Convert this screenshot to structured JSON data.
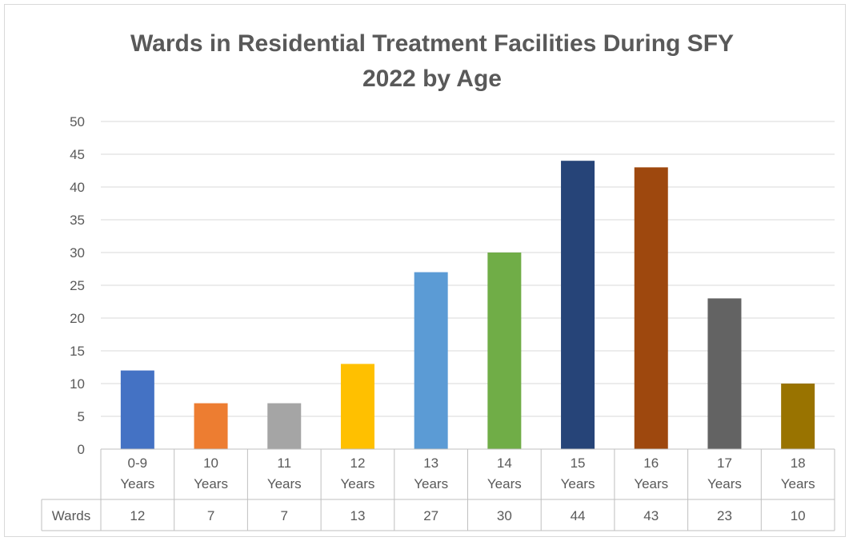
{
  "chart_data": {
    "type": "bar",
    "title_lines": [
      "Wards in Residential Treatment Facilities During SFY",
      "2022 by Age"
    ],
    "categories": [
      [
        "0-9",
        "Years"
      ],
      [
        "10",
        "Years"
      ],
      [
        "11",
        "Years"
      ],
      [
        "12",
        "Years"
      ],
      [
        "13",
        "Years"
      ],
      [
        "14",
        "Years"
      ],
      [
        "15",
        "Years"
      ],
      [
        "16",
        "Years"
      ],
      [
        "17",
        "Years"
      ],
      [
        "18",
        "Years"
      ]
    ],
    "series": [
      {
        "name": "Wards",
        "values": [
          12,
          7,
          7,
          13,
          27,
          30,
          44,
          43,
          23,
          10
        ]
      }
    ],
    "colors": [
      "#4472C4",
      "#ED7D31",
      "#A5A5A5",
      "#FFC000",
      "#5B9BD5",
      "#70AD47",
      "#264478",
      "#9E480E",
      "#636363",
      "#997300"
    ],
    "ylim": [
      0,
      50
    ],
    "yticks": [
      0,
      5,
      10,
      15,
      20,
      25,
      30,
      35,
      40,
      45,
      50
    ],
    "grid": true,
    "legend": "none",
    "data_table": true
  }
}
